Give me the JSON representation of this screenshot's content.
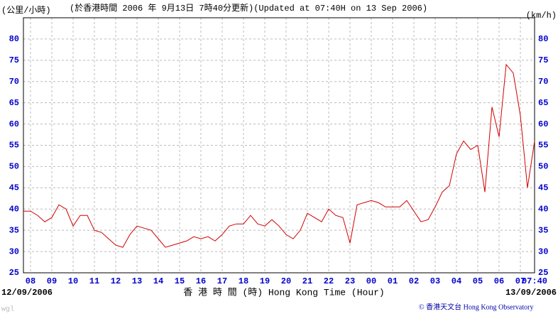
{
  "chart_data": {
    "type": "line",
    "title": "(於香港時間 2006 年 9月13日 7時40分更新)(Updated at 07:40H on 13 Sep 2006)",
    "y_label": "(公里/小時)",
    "y2_label": "(km/h)",
    "x_label": "香 港 時 間 (時) Hong Kong Time (Hour)",
    "start_date": "12/09/2006",
    "end_date": "13/09/2006",
    "credit": "© 香港天文台 Hong Kong Observatory",
    "author": "wgl",
    "color": "#d00000",
    "grid": true,
    "xlim": [
      460,
      1900
    ],
    "ylim": [
      25,
      85
    ],
    "yticks": [
      25,
      30,
      35,
      40,
      45,
      50,
      55,
      60,
      65,
      70,
      75,
      80
    ],
    "xticks": [
      {
        "value": 480,
        "label": "08"
      },
      {
        "value": 540,
        "label": "09"
      },
      {
        "value": 600,
        "label": "10"
      },
      {
        "value": 660,
        "label": "11"
      },
      {
        "value": 720,
        "label": "12"
      },
      {
        "value": 780,
        "label": "13"
      },
      {
        "value": 840,
        "label": "14"
      },
      {
        "value": 900,
        "label": "15"
      },
      {
        "value": 960,
        "label": "16"
      },
      {
        "value": 1020,
        "label": "17"
      },
      {
        "value": 1080,
        "label": "18"
      },
      {
        "value": 1140,
        "label": "19"
      },
      {
        "value": 1200,
        "label": "20"
      },
      {
        "value": 1260,
        "label": "21"
      },
      {
        "value": 1320,
        "label": "22"
      },
      {
        "value": 1380,
        "label": "23"
      },
      {
        "value": 1440,
        "label": "00"
      },
      {
        "value": 1500,
        "label": "01"
      },
      {
        "value": 1560,
        "label": "02"
      },
      {
        "value": 1620,
        "label": "03"
      },
      {
        "value": 1680,
        "label": "04"
      },
      {
        "value": 1740,
        "label": "05"
      },
      {
        "value": 1800,
        "label": "06"
      },
      {
        "value": 1860,
        "label": "07"
      },
      {
        "value": 1900,
        "label": "07:40"
      }
    ],
    "x": [
      460,
      480,
      500,
      520,
      540,
      560,
      580,
      600,
      620,
      640,
      660,
      680,
      700,
      720,
      740,
      760,
      780,
      800,
      820,
      840,
      860,
      880,
      900,
      920,
      940,
      960,
      980,
      1000,
      1020,
      1040,
      1060,
      1080,
      1100,
      1120,
      1140,
      1160,
      1180,
      1200,
      1220,
      1240,
      1260,
      1280,
      1300,
      1320,
      1340,
      1360,
      1380,
      1400,
      1420,
      1440,
      1460,
      1480,
      1500,
      1520,
      1540,
      1560,
      1580,
      1600,
      1620,
      1640,
      1660,
      1680,
      1700,
      1720,
      1740,
      1760,
      1780,
      1800,
      1820,
      1840,
      1860,
      1880,
      1900
    ],
    "values": [
      39.5,
      39.5,
      38.5,
      37,
      38,
      41,
      40,
      36,
      38.5,
      38.5,
      35,
      34.5,
      33,
      31.5,
      31,
      34,
      36,
      35.5,
      35,
      33,
      31,
      31.5,
      32,
      32.5,
      33.5,
      33,
      33.5,
      32.5,
      34,
      36,
      36.5,
      36.5,
      38.5,
      36.5,
      36,
      37.5,
      36,
      34,
      33,
      35,
      39,
      38,
      37,
      40,
      38.5,
      38,
      32,
      41,
      41.5,
      42,
      41.5,
      40.5,
      40.5,
      40.5,
      42,
      39.5,
      37,
      37.5,
      40.5,
      44,
      45.5,
      53,
      56,
      54,
      55,
      44,
      64,
      57,
      74,
      72,
      62,
      45,
      56
    ]
  }
}
